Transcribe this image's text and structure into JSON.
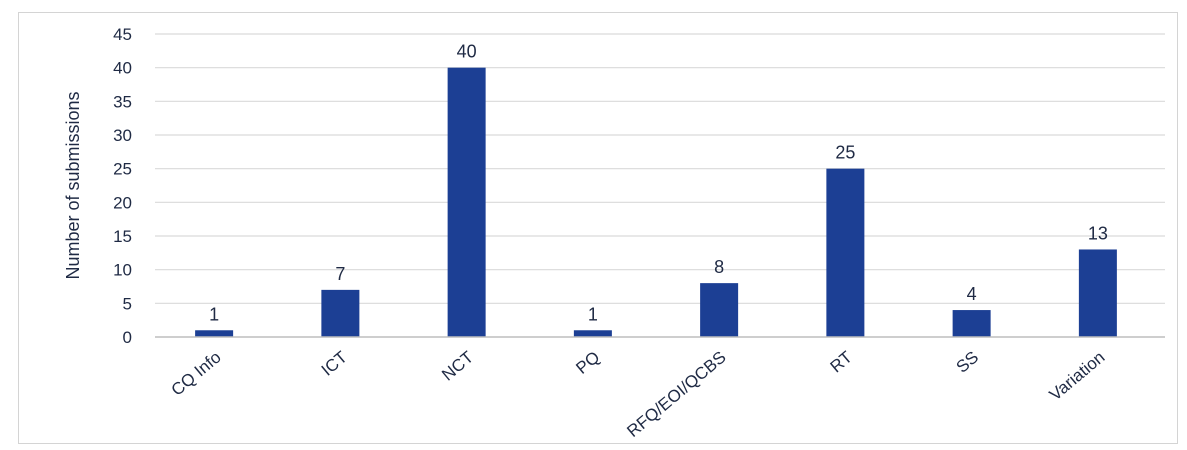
{
  "chart_data": {
    "type": "bar",
    "title": "",
    "xlabel": "",
    "ylabel": "Number of submissions",
    "categories": [
      "CQ Info",
      "ICT",
      "NCT",
      "PQ",
      "RFQ/EOI/QCBS",
      "RT",
      "SS",
      "Variation"
    ],
    "values": [
      1,
      7,
      40,
      1,
      8,
      25,
      4,
      13
    ],
    "ylim": [
      0,
      45
    ],
    "yticks": [
      0,
      5,
      10,
      15,
      20,
      25,
      30,
      35,
      40,
      45
    ],
    "grid": true,
    "legend": "none",
    "bar_color": "#1c3f94",
    "grid_color": "#d9d9d9"
  }
}
